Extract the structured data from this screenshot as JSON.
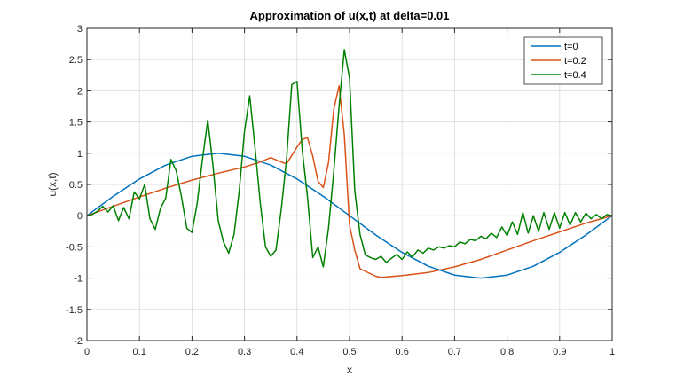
{
  "chart_data": {
    "type": "line",
    "title": "Approximation of u(x,t) at delta=0.01",
    "xlabel": "x",
    "ylabel": "u(x,t)",
    "xlim": [
      0,
      1
    ],
    "ylim": [
      -2,
      3
    ],
    "grid": true,
    "legend_placement": "top-right",
    "xticks": [
      0,
      0.1,
      0.2,
      0.3,
      0.4,
      0.5,
      0.6,
      0.7,
      0.8,
      0.9,
      1
    ],
    "xtick_labels": [
      "0",
      "0.1",
      "0.2",
      "0.3",
      "0.4",
      "0.5",
      "0.6",
      "0.7",
      "0.8",
      "0.9",
      "1"
    ],
    "yticks": [
      -2,
      -1.5,
      -1,
      -0.5,
      0,
      0.5,
      1,
      1.5,
      2,
      2.5,
      3
    ],
    "ytick_labels": [
      "-2",
      "-1.5",
      "-1",
      "-0.5",
      "0",
      "0.5",
      "1",
      "1.5",
      "2",
      "2.5",
      "3"
    ],
    "series": [
      {
        "name": "t=0",
        "color": "#0072BD",
        "x": [
          0,
          0.05,
          0.1,
          0.15,
          0.2,
          0.25,
          0.3,
          0.35,
          0.4,
          0.45,
          0.5,
          0.55,
          0.6,
          0.65,
          0.7,
          0.75,
          0.8,
          0.85,
          0.9,
          0.95,
          1
        ],
        "y": [
          0,
          0.309,
          0.588,
          0.809,
          0.951,
          1.0,
          0.951,
          0.809,
          0.588,
          0.309,
          0,
          -0.309,
          -0.588,
          -0.809,
          -0.951,
          -1.0,
          -0.951,
          -0.809,
          -0.588,
          -0.309,
          0
        ]
      },
      {
        "name": "t=0.2",
        "color": "#D95319",
        "x": [
          0,
          0.05,
          0.1,
          0.15,
          0.2,
          0.25,
          0.3,
          0.33,
          0.35,
          0.37,
          0.38,
          0.4,
          0.41,
          0.42,
          0.43,
          0.44,
          0.45,
          0.46,
          0.47,
          0.48,
          0.49,
          0.5,
          0.51,
          0.52,
          0.55,
          0.56,
          0.6,
          0.65,
          0.7,
          0.75,
          0.8,
          0.85,
          0.9,
          0.95,
          1
        ],
        "y": [
          0,
          0.15,
          0.3,
          0.44,
          0.57,
          0.68,
          0.78,
          0.86,
          0.93,
          0.86,
          0.83,
          1.1,
          1.22,
          1.25,
          0.95,
          0.55,
          0.45,
          0.85,
          1.7,
          2.08,
          1.3,
          -0.15,
          -0.55,
          -0.85,
          -0.97,
          -0.99,
          -0.96,
          -0.91,
          -0.82,
          -0.7,
          -0.55,
          -0.4,
          -0.26,
          -0.12,
          0
        ]
      },
      {
        "name": "t=0.4",
        "color": "#008000",
        "x": [
          0,
          0.01,
          0.02,
          0.03,
          0.04,
          0.05,
          0.06,
          0.07,
          0.08,
          0.09,
          0.1,
          0.11,
          0.12,
          0.13,
          0.14,
          0.15,
          0.16,
          0.17,
          0.18,
          0.19,
          0.2,
          0.21,
          0.22,
          0.23,
          0.24,
          0.25,
          0.26,
          0.27,
          0.28,
          0.29,
          0.3,
          0.31,
          0.32,
          0.33,
          0.34,
          0.35,
          0.36,
          0.37,
          0.38,
          0.39,
          0.4,
          0.41,
          0.42,
          0.43,
          0.44,
          0.45,
          0.46,
          0.47,
          0.48,
          0.49,
          0.5,
          0.51,
          0.52,
          0.53,
          0.54,
          0.55,
          0.56,
          0.57,
          0.58,
          0.59,
          0.6,
          0.61,
          0.62,
          0.63,
          0.64,
          0.65,
          0.66,
          0.67,
          0.68,
          0.69,
          0.7,
          0.71,
          0.72,
          0.73,
          0.74,
          0.75,
          0.76,
          0.77,
          0.78,
          0.79,
          0.8,
          0.81,
          0.82,
          0.83,
          0.84,
          0.85,
          0.86,
          0.87,
          0.88,
          0.89,
          0.9,
          0.91,
          0.92,
          0.93,
          0.94,
          0.95,
          0.96,
          0.97,
          0.98,
          0.99,
          1
        ],
        "y": [
          0,
          0.02,
          0.07,
          0.15,
          0.06,
          0.16,
          -0.08,
          0.13,
          -0.05,
          0.38,
          0.27,
          0.5,
          -0.05,
          -0.22,
          0.12,
          0.28,
          0.9,
          0.72,
          0.3,
          -0.2,
          -0.27,
          0.2,
          0.9,
          1.53,
          0.8,
          -0.08,
          -0.42,
          -0.6,
          -0.3,
          0.4,
          1.35,
          1.92,
          1.1,
          0.2,
          -0.5,
          -0.65,
          -0.55,
          0.1,
          0.9,
          2.1,
          2.15,
          1.05,
          0.3,
          -0.67,
          -0.5,
          -0.82,
          -0.2,
          0.7,
          1.75,
          2.66,
          2.2,
          0.4,
          -0.3,
          -0.63,
          -0.67,
          -0.7,
          -0.65,
          -0.75,
          -0.68,
          -0.62,
          -0.7,
          -0.58,
          -0.66,
          -0.55,
          -0.6,
          -0.52,
          -0.55,
          -0.5,
          -0.52,
          -0.48,
          -0.5,
          -0.42,
          -0.45,
          -0.38,
          -0.4,
          -0.33,
          -0.37,
          -0.28,
          -0.35,
          -0.18,
          -0.32,
          -0.1,
          -0.3,
          0.05,
          -0.28,
          0.0,
          -0.25,
          0.05,
          -0.22,
          0.05,
          -0.2,
          0.05,
          -0.15,
          0.05,
          -0.1,
          0.04,
          -0.05,
          0.02,
          -0.05,
          0.02,
          0
        ]
      }
    ]
  }
}
